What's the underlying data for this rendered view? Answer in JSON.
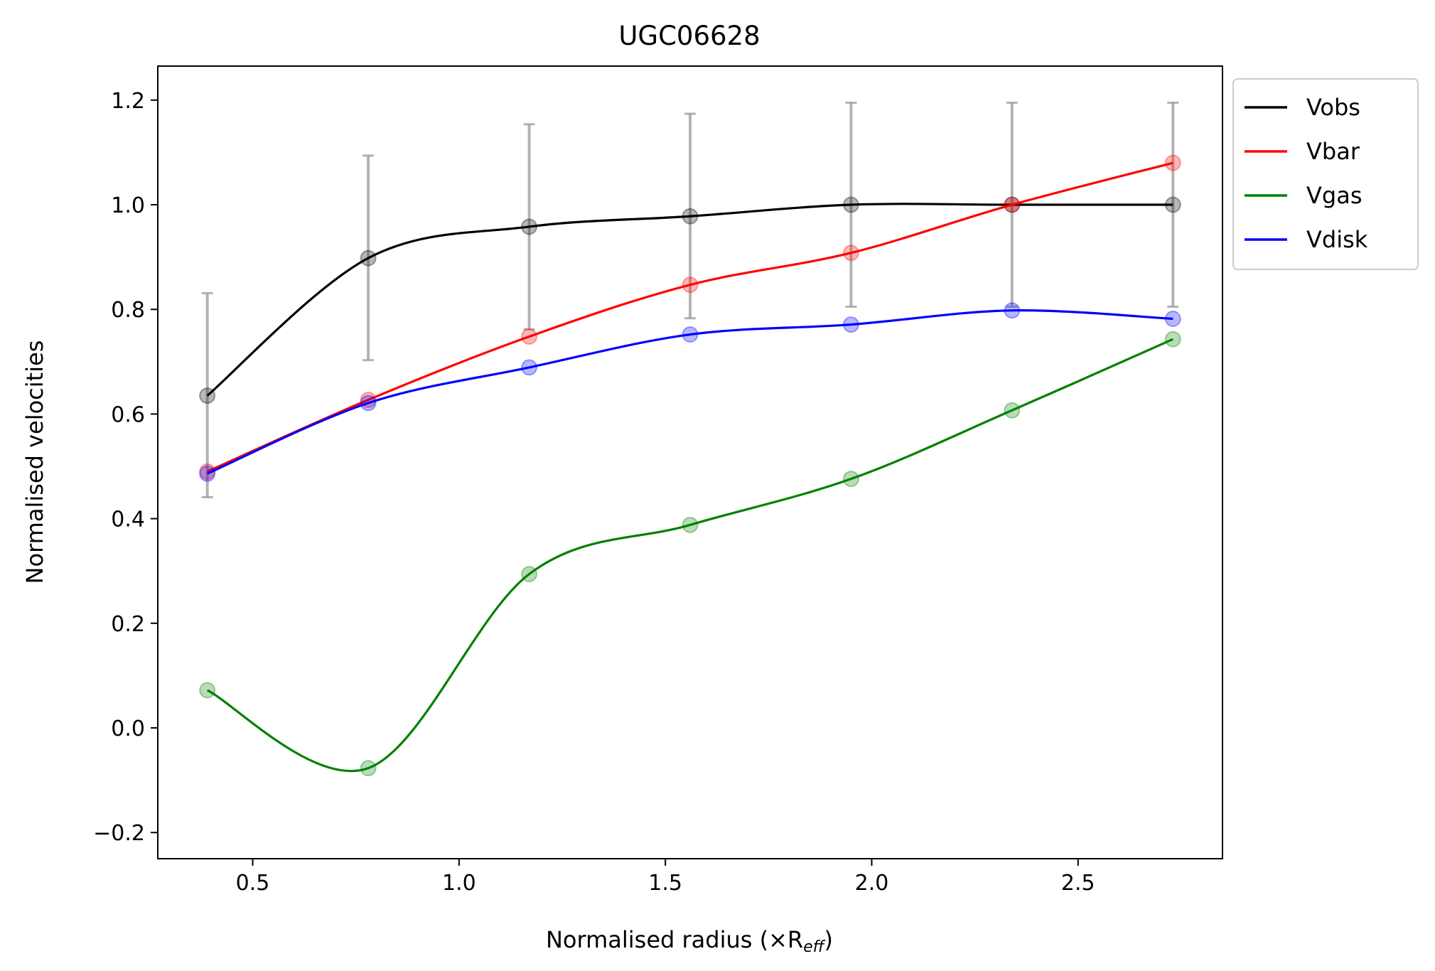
{
  "chart_data": {
    "type": "line",
    "title": "UGC06628",
    "xlabel": "Normalised radius (×R",
    "xlabel_sub": "eff",
    "xlabel_close": ")",
    "ylabel": "Normalised velocities",
    "xlim": [
      0.27,
      2.85
    ],
    "ylim": [
      -0.25,
      1.265
    ],
    "xticks": [
      0.5,
      1.0,
      1.5,
      2.0,
      2.5
    ],
    "xtick_labels": [
      "0.5",
      "1.0",
      "1.5",
      "2.0",
      "2.5"
    ],
    "yticks": [
      -0.2,
      0.0,
      0.2,
      0.4,
      0.6,
      0.8,
      1.0,
      1.2
    ],
    "ytick_labels": [
      "−0.2",
      "0.0",
      "0.2",
      "0.4",
      "0.6",
      "0.8",
      "1.0",
      "1.2"
    ],
    "grid": false,
    "legend_position": "outside-upper-right",
    "x": [
      0.39,
      0.78,
      1.17,
      1.56,
      1.95,
      2.34,
      2.73
    ],
    "series": [
      {
        "name": "Vobs",
        "color": "#000000",
        "values": [
          0.635,
          0.898,
          0.958,
          0.978,
          1.0,
          1.0,
          1.0
        ]
      },
      {
        "name": "Vbar",
        "color": "#ff0000",
        "values": [
          0.49,
          0.627,
          0.748,
          0.847,
          0.908,
          1.0,
          1.08
        ]
      },
      {
        "name": "Vgas",
        "color": "#008000",
        "values": [
          0.072,
          -0.077,
          0.294,
          0.388,
          0.476,
          0.607,
          0.743
        ]
      },
      {
        "name": "Vdisk",
        "color": "#0000ff",
        "values": [
          0.486,
          0.621,
          0.689,
          0.752,
          0.771,
          0.798,
          0.782
        ]
      }
    ],
    "errorbars": {
      "series": "Vobs",
      "color": "#999999",
      "lower": [
        0.441,
        0.703,
        0.762,
        0.783,
        0.805,
        0.805,
        0.805
      ],
      "upper": [
        0.831,
        1.094,
        1.154,
        1.174,
        1.195,
        1.195,
        1.195
      ]
    }
  }
}
